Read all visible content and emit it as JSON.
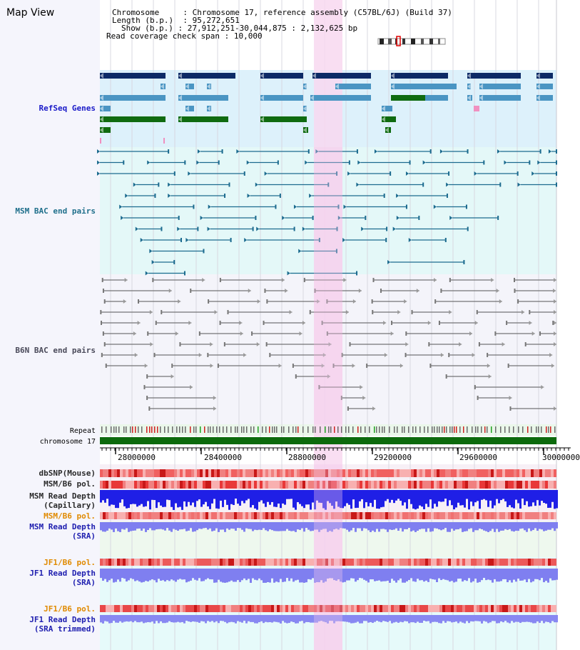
{
  "title": "Map View",
  "header": {
    "rows": [
      {
        "key": "Chromosome",
        "value": "Chromosome 17, reference assembly (C57BL/6J) (Build 37)"
      },
      {
        "key": "Length (b.p.)",
        "value": "95,272,651"
      },
      {
        "key": "Show (b.p.)",
        "value": "27,912,251-30,044,875 : 2,132,625 bp"
      },
      {
        "key": "Read coverage check span",
        "value": "10,000"
      }
    ]
  },
  "tracks": {
    "refseq": "RefSeq Genes",
    "msm_bac": "MSM BAC end pairs",
    "b6n_bac": "B6N BAC end pairs",
    "repeat": "Repeat",
    "chromosome": "chromosome 17",
    "dbsnp": "dbSNP(Mouse)",
    "msm_b6_pol_1": "MSM/B6 pol.",
    "msm_read_depth_cap_1": "MSM Read Depth",
    "msm_read_depth_cap_2": "(Capillary)",
    "msm_b6_pol_2": "MSM/B6 pol.",
    "msm_read_depth_sra_1": "MSM Read Depth",
    "msm_read_depth_sra_2": "(SRA)",
    "jf1_b6_pol_1": "JF1/B6 pol.",
    "jf1_read_depth_sra_1": "JF1 Read Depth",
    "jf1_read_depth_sra_2": "(SRA)",
    "jf1_b6_pol_2": "JF1/B6 pol.",
    "jf1_read_depth_trim_1": "JF1 Read Depth",
    "jf1_read_depth_trim_2": "(SRA trimmed)"
  },
  "axis_ticks": [
    "28000000",
    "28400000",
    "28800000",
    "29200000",
    "29600000",
    "30000000"
  ],
  "colors": {
    "highlight": "#f8d8f0",
    "refseq_bg": "#ddf1fb",
    "msm_bg": "#e4f8f8",
    "b6n_bg": "#f4f4fa",
    "gene_navy": "#0d2a66",
    "gene_steel": "#4a95c3",
    "gene_green": "#0f6b10",
    "msm_line": "#1c6b8f",
    "b6n_line": "#555555",
    "chrom_green": "#0c6a0c",
    "depth_blue": "#1f1fe6",
    "depth_lilac": "#7f7ff0",
    "pol_red": "#e84040"
  }
}
